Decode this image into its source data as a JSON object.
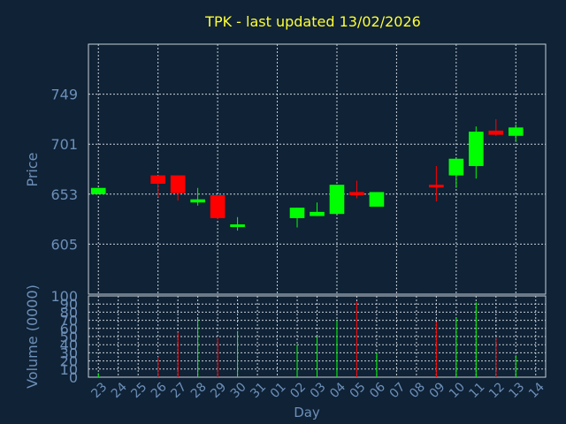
{
  "title": "TPK - last updated 13/02/2026",
  "colors": {
    "background": "#0f2236",
    "up": "#00ff00",
    "down": "#ff0000",
    "title": "#ffff33",
    "label": "#6d8fb8",
    "grid": "#c8d0d8"
  },
  "chart_data": [
    {
      "type": "candlestick",
      "ylabel": "Price",
      "ylim": [
        557,
        797
      ],
      "yticks": [
        605,
        653,
        701,
        749
      ],
      "grid": true,
      "categories": [
        "23",
        "24",
        "25",
        "26",
        "27",
        "28",
        "29",
        "30",
        "31",
        "01",
        "02",
        "03",
        "04",
        "05",
        "06",
        "07",
        "08",
        "09",
        "10",
        "11",
        "12",
        "13",
        "14"
      ],
      "candles": [
        {
          "day": "23",
          "open": 653,
          "high": 659,
          "low": 653,
          "close": 659
        },
        {
          "day": "26",
          "open": 671,
          "high": 671,
          "low": 650,
          "close": 663
        },
        {
          "day": "27",
          "open": 671,
          "high": 671,
          "low": 647,
          "close": 654
        },
        {
          "day": "28",
          "open": 645,
          "high": 659,
          "low": 642,
          "close": 648
        },
        {
          "day": "29",
          "open": 652,
          "high": 652,
          "low": 629,
          "close": 630
        },
        {
          "day": "30",
          "open": 623,
          "high": 631,
          "low": 618,
          "close": 624
        },
        {
          "day": "02",
          "open": 630,
          "high": 640,
          "low": 621,
          "close": 640
        },
        {
          "day": "03",
          "open": 632,
          "high": 645,
          "low": 632,
          "close": 636
        },
        {
          "day": "04",
          "open": 634,
          "high": 662,
          "low": 634,
          "close": 662
        },
        {
          "day": "05",
          "open": 655,
          "high": 666,
          "low": 649,
          "close": 652
        },
        {
          "day": "06",
          "open": 641,
          "high": 655,
          "low": 641,
          "close": 655
        },
        {
          "day": "09",
          "open": 662,
          "high": 680,
          "low": 646,
          "close": 660
        },
        {
          "day": "10",
          "open": 671,
          "high": 687,
          "low": 659,
          "close": 687
        },
        {
          "day": "11",
          "open": 680,
          "high": 718,
          "low": 668,
          "close": 713
        },
        {
          "day": "12",
          "open": 714,
          "high": 725,
          "low": 709,
          "close": 710
        },
        {
          "day": "13",
          "open": 709,
          "high": 720,
          "low": 703,
          "close": 717
        }
      ]
    },
    {
      "type": "bar",
      "ylabel": "Volume (0000)",
      "xlabel": "Day",
      "ylim": [
        0,
        100
      ],
      "ytick_labels": [
        "0",
        "10",
        "20",
        "30",
        "40",
        "50",
        "60",
        "70",
        "80",
        "90",
        "100"
      ],
      "grid": true,
      "categories": [
        "23",
        "24",
        "25",
        "26",
        "27",
        "28",
        "29",
        "30",
        "31",
        "01",
        "02",
        "03",
        "04",
        "05",
        "06",
        "07",
        "08",
        "09",
        "10",
        "11",
        "12",
        "13",
        "14"
      ],
      "bars": [
        {
          "day": "23",
          "value": 5,
          "direction": "up"
        },
        {
          "day": "26",
          "value": 25,
          "direction": "down"
        },
        {
          "day": "27",
          "value": 55,
          "direction": "down"
        },
        {
          "day": "28",
          "value": 72,
          "direction": "up"
        },
        {
          "day": "29",
          "value": 48,
          "direction": "down"
        },
        {
          "day": "30",
          "value": 57,
          "direction": "up"
        },
        {
          "day": "02",
          "value": 40,
          "direction": "up"
        },
        {
          "day": "03",
          "value": 50,
          "direction": "up"
        },
        {
          "day": "04",
          "value": 70,
          "direction": "up"
        },
        {
          "day": "05",
          "value": 93,
          "direction": "down"
        },
        {
          "day": "06",
          "value": 30,
          "direction": "up"
        },
        {
          "day": "09",
          "value": 68,
          "direction": "down"
        },
        {
          "day": "10",
          "value": 73,
          "direction": "up"
        },
        {
          "day": "11",
          "value": 92,
          "direction": "up"
        },
        {
          "day": "12",
          "value": 48,
          "direction": "down"
        },
        {
          "day": "13",
          "value": 27,
          "direction": "up"
        }
      ]
    }
  ]
}
